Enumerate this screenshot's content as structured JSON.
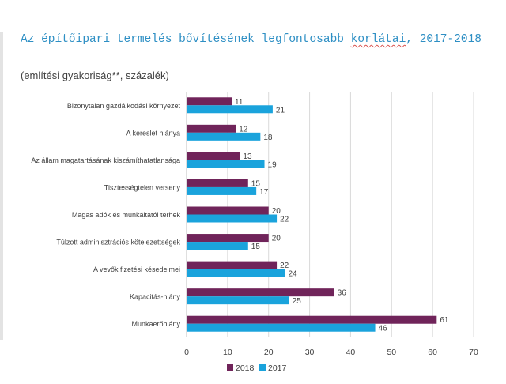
{
  "title_part1": "Az építőipari termelés bővítésének legfontosabb ",
  "title_part2": "korlátai",
  "title_part3": ", 2017-2018",
  "subtitle": "(említési gyakoriság**, százalék)",
  "colors": {
    "series_2018": "#70245a",
    "series_2017": "#1aa3dc",
    "grid": "#d9d9d9",
    "axis": "#bfbfbf"
  },
  "chart_data": {
    "type": "bar",
    "orientation": "horizontal",
    "categories": [
      "Bizonytalan gazdálkodási környezet",
      "A kereslet hiánya",
      "Az állam magatartásának kiszámíthatatlansága",
      "Tisztességtelen verseny",
      "Magas adók és munkáltatói terhek",
      "Túlzott adminisztrációs kötelezettségek",
      "A vevők fizetési késedelmei",
      "Kapacitás-hiány",
      "Munkaerőhiány"
    ],
    "series": [
      {
        "name": "2018",
        "values": [
          11,
          12,
          13,
          15,
          20,
          20,
          22,
          36,
          61
        ]
      },
      {
        "name": "2017",
        "values": [
          21,
          18,
          19,
          17,
          22,
          15,
          24,
          25,
          46
        ]
      }
    ],
    "xlim": [
      0,
      70
    ],
    "xticks": [
      0,
      10,
      20,
      30,
      40,
      50,
      60,
      70
    ],
    "grid": true,
    "legend": "bottom"
  }
}
